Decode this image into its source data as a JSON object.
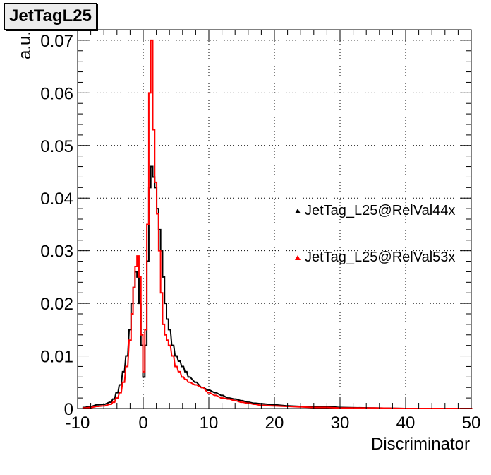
{
  "title": "JetTagL25",
  "chart_data": {
    "type": "line",
    "style": "step-histogram",
    "title": "JetTagL25",
    "xlabel": "Discriminator",
    "ylabel": "a.u.",
    "xlim": [
      -10,
      50
    ],
    "ylim": [
      0,
      0.072
    ],
    "x_ticks": [
      -10,
      0,
      10,
      20,
      30,
      40,
      50
    ],
    "x_tick_labels": [
      "-10",
      "0",
      "10",
      "20",
      "30",
      "40",
      "50"
    ],
    "y_ticks": [
      0,
      0.01,
      0.02,
      0.03,
      0.04,
      0.05,
      0.06,
      0.07
    ],
    "y_tick_labels": [
      "0",
      "0.01",
      "0.02",
      "0.03",
      "0.04",
      "0.05",
      "0.06",
      "0.07"
    ],
    "grid": true,
    "legend_position": "right",
    "bin_width": 0.3,
    "series": [
      {
        "name": "JetTag_L25@RelVal44x",
        "color": "#000000",
        "points": [
          [
            -9.0,
            0.0002
          ],
          [
            -8.0,
            0.0004
          ],
          [
            -7.0,
            0.0007
          ],
          [
            -6.0,
            0.0008
          ],
          [
            -5.0,
            0.0012
          ],
          [
            -4.5,
            0.0018
          ],
          [
            -4.0,
            0.003
          ],
          [
            -3.5,
            0.0045
          ],
          [
            -3.0,
            0.007
          ],
          [
            -2.5,
            0.01
          ],
          [
            -2.0,
            0.015
          ],
          [
            -1.7,
            0.02
          ],
          [
            -1.4,
            0.023
          ],
          [
            -1.1,
            0.026
          ],
          [
            -0.8,
            0.025
          ],
          [
            -0.5,
            0.02
          ],
          [
            -0.2,
            0.012
          ],
          [
            0.1,
            0.006
          ],
          [
            0.4,
            0.012
          ],
          [
            0.7,
            0.028
          ],
          [
            1.0,
            0.042
          ],
          [
            1.3,
            0.046
          ],
          [
            1.6,
            0.044
          ],
          [
            1.9,
            0.042
          ],
          [
            2.2,
            0.038
          ],
          [
            2.5,
            0.034
          ],
          [
            2.8,
            0.03
          ],
          [
            3.1,
            0.025
          ],
          [
            3.4,
            0.02
          ],
          [
            3.7,
            0.017
          ],
          [
            4.0,
            0.015
          ],
          [
            4.5,
            0.012
          ],
          [
            5.0,
            0.01
          ],
          [
            5.5,
            0.009
          ],
          [
            6.0,
            0.008
          ],
          [
            6.5,
            0.007
          ],
          [
            7.0,
            0.006
          ],
          [
            8.0,
            0.005
          ],
          [
            9.0,
            0.004
          ],
          [
            10.0,
            0.0035
          ],
          [
            11.0,
            0.003
          ],
          [
            12.0,
            0.0025
          ],
          [
            13.0,
            0.002
          ],
          [
            14.0,
            0.0018
          ],
          [
            15.0,
            0.0015
          ],
          [
            16.0,
            0.0012
          ],
          [
            17.0,
            0.001
          ],
          [
            18.0,
            0.0009
          ],
          [
            20.0,
            0.0007
          ],
          [
            22.0,
            0.0005
          ],
          [
            24.0,
            0.0004
          ],
          [
            26.0,
            0.0003
          ],
          [
            28.0,
            0.0004
          ],
          [
            30.0,
            0.0002
          ],
          [
            35.0,
            0.0001
          ],
          [
            40.0,
            0.0
          ],
          [
            50.0,
            0.0
          ]
        ]
      },
      {
        "name": "JetTag_L25@RelVal53x",
        "color": "#ff0000",
        "points": [
          [
            -9.0,
            0.0001
          ],
          [
            -8.0,
            0.0002
          ],
          [
            -7.0,
            0.0004
          ],
          [
            -6.0,
            0.0005
          ],
          [
            -5.0,
            0.0008
          ],
          [
            -4.5,
            0.0012
          ],
          [
            -4.0,
            0.002
          ],
          [
            -3.5,
            0.003
          ],
          [
            -3.0,
            0.005
          ],
          [
            -2.5,
            0.008
          ],
          [
            -2.0,
            0.013
          ],
          [
            -1.7,
            0.018
          ],
          [
            -1.4,
            0.023
          ],
          [
            -1.1,
            0.027
          ],
          [
            -0.8,
            0.029
          ],
          [
            -0.5,
            0.025
          ],
          [
            -0.2,
            0.014
          ],
          [
            0.1,
            0.007
          ],
          [
            0.4,
            0.015
          ],
          [
            0.7,
            0.035
          ],
          [
            1.0,
            0.06
          ],
          [
            1.3,
            0.07
          ],
          [
            1.6,
            0.053
          ],
          [
            1.9,
            0.043
          ],
          [
            2.2,
            0.037
          ],
          [
            2.5,
            0.03
          ],
          [
            2.8,
            0.022
          ],
          [
            3.1,
            0.016
          ],
          [
            3.4,
            0.014
          ],
          [
            3.7,
            0.013
          ],
          [
            4.0,
            0.012
          ],
          [
            4.5,
            0.01
          ],
          [
            5.0,
            0.008
          ],
          [
            5.5,
            0.007
          ],
          [
            6.0,
            0.006
          ],
          [
            6.5,
            0.0055
          ],
          [
            7.0,
            0.005
          ],
          [
            8.0,
            0.0045
          ],
          [
            9.0,
            0.004
          ],
          [
            10.0,
            0.003
          ],
          [
            11.0,
            0.0025
          ],
          [
            12.0,
            0.002
          ],
          [
            13.0,
            0.0018
          ],
          [
            14.0,
            0.0015
          ],
          [
            15.0,
            0.0012
          ],
          [
            16.0,
            0.001
          ],
          [
            17.0,
            0.0008
          ],
          [
            18.0,
            0.0006
          ],
          [
            20.0,
            0.0005
          ],
          [
            22.0,
            0.0004
          ],
          [
            24.0,
            0.0003
          ],
          [
            26.0,
            0.0002
          ],
          [
            28.0,
            0.0002
          ],
          [
            30.0,
            0.0001
          ],
          [
            35.0,
            0.0001
          ],
          [
            40.0,
            0.0
          ],
          [
            50.0,
            0.0
          ]
        ]
      }
    ]
  }
}
